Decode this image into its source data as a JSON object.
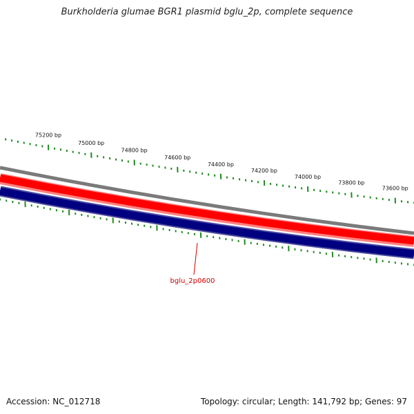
{
  "title": "Burkholderia glumae BGR1 plasmid bglu_2p, complete sequence",
  "footer": {
    "accession": "Accession: NC_012718",
    "summary": "Topology: circular; Length: 141,792 bp; Genes: 97"
  },
  "colors": {
    "tick": "#1f8a1f",
    "backbone": "#7a7a7a",
    "forward_strand": "#ff0000",
    "forward_strand_light": "#ff8080",
    "reverse_strand": "#000080",
    "reverse_strand_edge": "#4a4aa0",
    "gene_label": "#cc0000"
  },
  "scale_labels": [
    "75200 bp",
    "75000 bp",
    "74800 bp",
    "74600 bp",
    "74400 bp",
    "74200 bp",
    "74000 bp",
    "73800 bp",
    "73600 bp"
  ],
  "gene_label": "bglu_2p0600"
}
